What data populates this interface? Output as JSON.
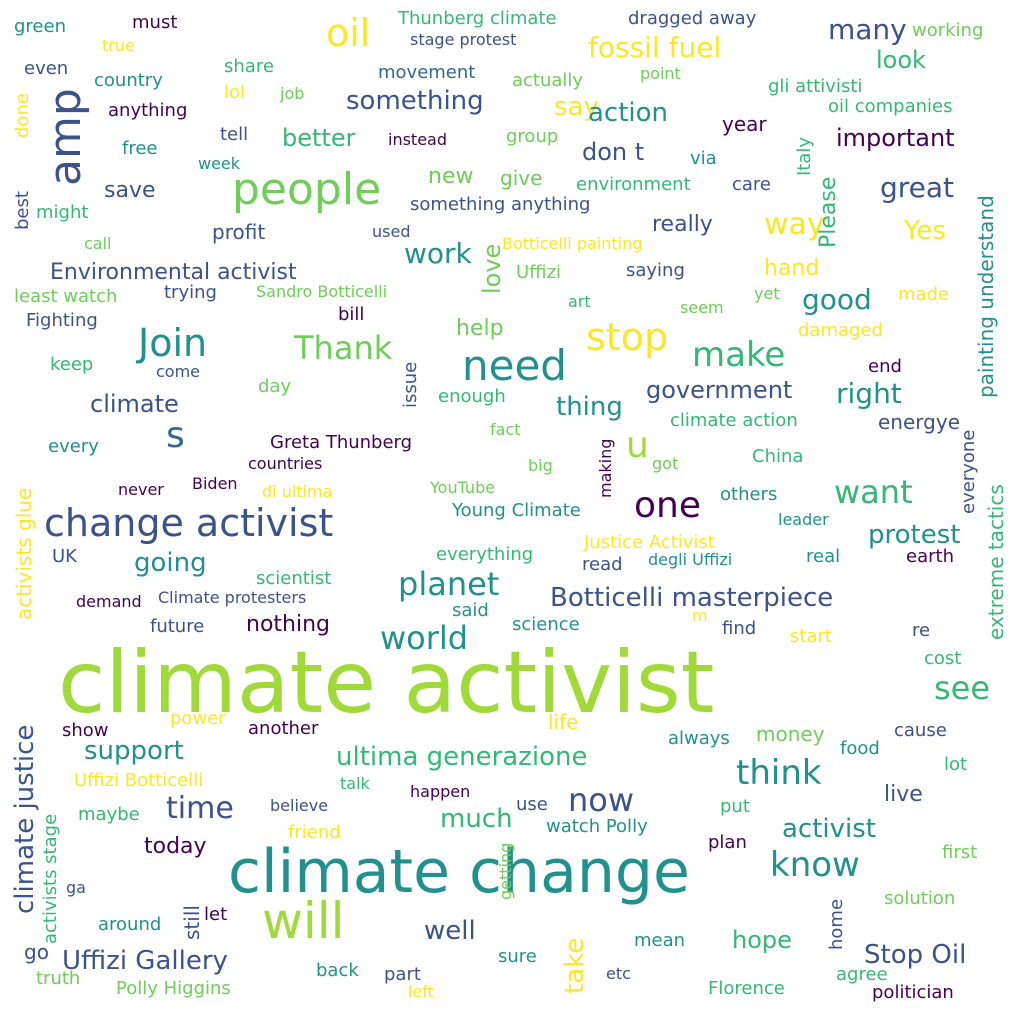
{
  "palette": {
    "dark_purple": "#440154",
    "indigo": "#3b528b",
    "blue": "#31688e",
    "teal": "#21918c",
    "green_teal": "#35b779",
    "green": "#6ece58",
    "lime": "#a0da39",
    "yellow": "#fde725"
  },
  "words": [
    "climate activist",
    "climate change",
    "change activist",
    "people",
    "need",
    "will",
    "amp",
    "Join",
    "stop",
    "oil",
    "one",
    "think",
    "know",
    "now",
    "make",
    "world",
    "planet",
    "want",
    "see",
    "time",
    "Botticelli masterpiece",
    "ultima generazione",
    "climate justice",
    "support",
    "Thank",
    "s",
    "u",
    "Uffizi Gallery",
    "Stop Oil",
    "fossil fuel",
    "something",
    "good",
    "great",
    "way",
    "work",
    "activist",
    "protest",
    "going",
    "climate",
    "right",
    "government",
    "thing",
    "Environmental activist",
    "important",
    "much",
    "hope",
    "well",
    "take",
    "say",
    "action",
    "don t",
    "save",
    "really",
    "Yes",
    "new",
    "give",
    "many",
    "look",
    "better",
    "love",
    "hand",
    "help",
    "today",
    "live",
    "nothing",
    "year",
    "Please",
    "Greta Thunberg",
    "Young Climate",
    "Justice Activist",
    "money",
    "life",
    "cause",
    "end",
    "energye",
    "painting understand",
    "extreme tactics",
    "everyone",
    "activists glue",
    "activists stage",
    "movement",
    "country",
    "anything",
    "free",
    "tell",
    "instead",
    "group",
    "week",
    "environment",
    "care",
    "something anything",
    "via",
    "might",
    "best",
    "call",
    "profit",
    "used",
    "Botticelli painting",
    "Uffizi",
    "saying",
    "trying",
    "Sandro Botticelli",
    "art",
    "seem",
    "yet",
    "made",
    "least watch",
    "Fighting",
    "bill",
    "damaged",
    "keep",
    "come",
    "day",
    "issue",
    "enough",
    "climate action",
    "fact",
    "every",
    "countries",
    "big",
    "got",
    "China",
    "never",
    "Biden",
    "di ultima",
    "YouTube",
    "making",
    "others",
    "leader",
    "UK",
    "everything",
    "earth",
    "read",
    "degli Uffizi",
    "real",
    "scientist",
    "demand",
    "Climate protesters",
    "said",
    "science",
    "future",
    "m",
    "find",
    "start",
    "re",
    "cost",
    "power",
    "another",
    "show",
    "always",
    "food",
    "lot",
    "Uffizi Botticelli",
    "talk",
    "believe",
    "happen",
    "use",
    "maybe",
    "put",
    "watch Polly",
    "friend",
    "plan",
    "first",
    "ga",
    "still",
    "getting",
    "around",
    "let",
    "solution",
    "home",
    "go",
    "mean",
    "back",
    "part",
    "sure",
    "etc",
    "agree",
    "truth",
    "Polly Higgins",
    "left",
    "Florence",
    "politician",
    "green",
    "must",
    "true",
    "Thunberg climate",
    "stage protest",
    "dragged away",
    "working",
    "share",
    "even",
    "lol",
    "job",
    "actually",
    "point",
    "gli attivisti",
    "oil companies",
    "done",
    "Italy"
  ]
}
